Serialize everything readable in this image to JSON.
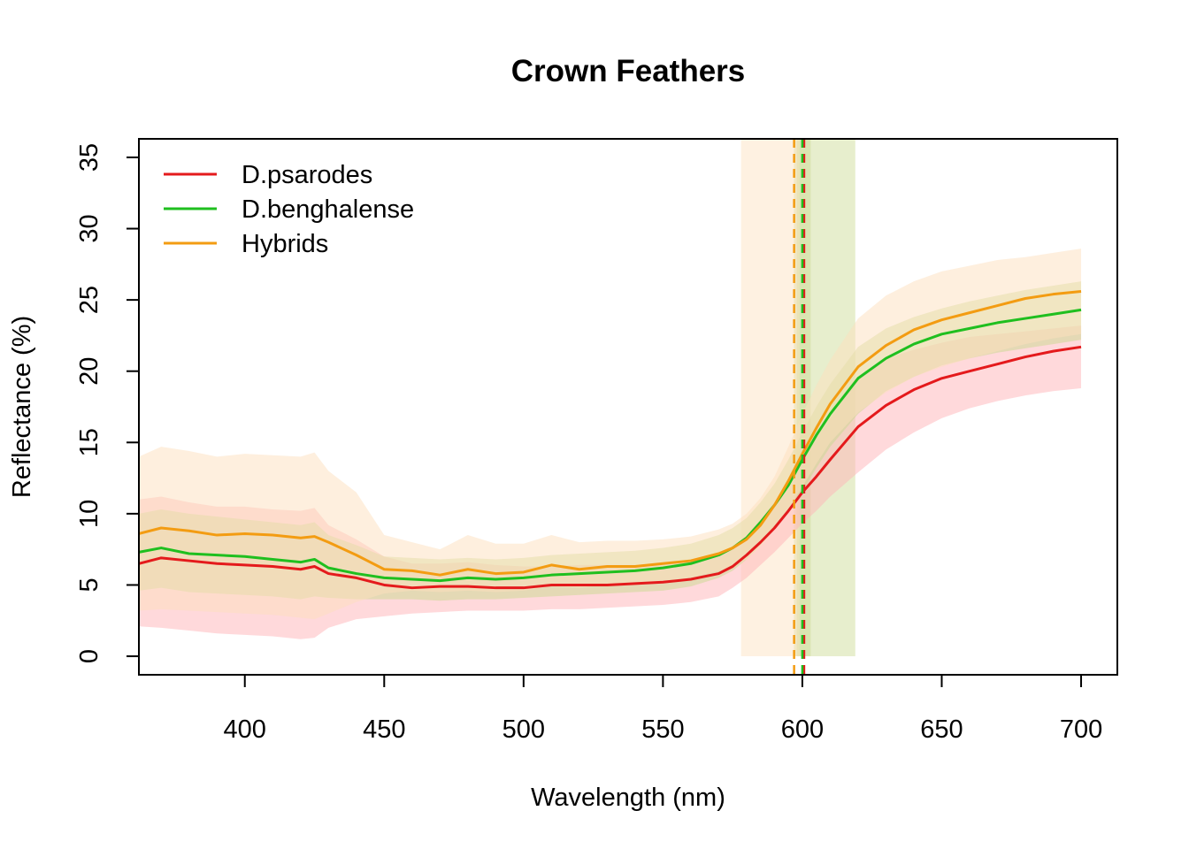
{
  "chart_data": {
    "type": "line",
    "title": "Crown Feathers",
    "xlabel": "Wavelength (nm)",
    "ylabel": "Reflectance (%)",
    "xlim": [
      362,
      713
    ],
    "ylim": [
      -1.3,
      36.3
    ],
    "x_ticks": [
      "400",
      "450",
      "500",
      "550",
      "600",
      "650",
      "700"
    ],
    "y_ticks": [
      "0",
      "5",
      "10",
      "15",
      "20",
      "25",
      "30",
      "35"
    ],
    "legend_position": "top-left",
    "grid": false,
    "series": [
      {
        "name": "D.psarodes",
        "color": "#e41a1c",
        "band_color": "#ffb3b8",
        "x": [
          362,
          370,
          380,
          390,
          400,
          410,
          420,
          425,
          430,
          440,
          450,
          460,
          470,
          480,
          490,
          500,
          510,
          520,
          530,
          540,
          550,
          560,
          570,
          575,
          580,
          585,
          590,
          595,
          600,
          605,
          610,
          620,
          630,
          640,
          650,
          660,
          670,
          680,
          690,
          700
        ],
        "values": [
          6.5,
          6.9,
          6.7,
          6.5,
          6.4,
          6.3,
          6.1,
          6.3,
          5.8,
          5.5,
          5.0,
          4.8,
          4.9,
          4.9,
          4.8,
          4.8,
          5.0,
          5.0,
          5.0,
          5.1,
          5.2,
          5.4,
          5.8,
          6.3,
          7.1,
          8.0,
          9.0,
          10.2,
          11.5,
          12.6,
          13.8,
          16.1,
          17.6,
          18.7,
          19.5,
          20.0,
          20.5,
          21.0,
          21.4,
          21.7
        ],
        "band_upper": [
          11.0,
          11.2,
          10.8,
          10.5,
          10.5,
          10.3,
          10.2,
          10.4,
          9.2,
          8.2,
          7.0,
          6.5,
          6.5,
          6.6,
          6.4,
          6.3,
          6.3,
          6.4,
          6.4,
          6.4,
          6.5,
          6.7,
          7.2,
          7.7,
          8.5,
          9.6,
          10.8,
          12.3,
          13.9,
          15.3,
          16.7,
          19.5,
          20.9,
          21.5,
          22.0,
          22.4,
          22.6,
          22.8,
          23.0,
          23.2
        ],
        "band_lower": [
          2.1,
          2.0,
          1.8,
          1.6,
          1.5,
          1.4,
          1.2,
          1.3,
          2.0,
          2.6,
          2.8,
          3.0,
          3.1,
          3.2,
          3.2,
          3.2,
          3.3,
          3.3,
          3.4,
          3.5,
          3.6,
          3.8,
          4.2,
          4.8,
          5.5,
          6.4,
          7.3,
          8.3,
          9.3,
          10.2,
          11.2,
          12.9,
          14.5,
          15.7,
          16.7,
          17.4,
          17.9,
          18.3,
          18.6,
          18.8
        ]
      },
      {
        "name": "D.benghalense",
        "color": "#1fbf1f",
        "band_color": "#c9d990",
        "x": [
          362,
          370,
          380,
          390,
          400,
          410,
          420,
          425,
          430,
          440,
          450,
          460,
          470,
          480,
          490,
          500,
          510,
          520,
          530,
          540,
          550,
          560,
          570,
          575,
          580,
          585,
          590,
          595,
          600,
          605,
          610,
          620,
          630,
          640,
          650,
          660,
          670,
          680,
          690,
          700
        ],
        "values": [
          7.3,
          7.6,
          7.2,
          7.1,
          7.0,
          6.8,
          6.6,
          6.8,
          6.2,
          5.8,
          5.5,
          5.4,
          5.3,
          5.5,
          5.4,
          5.5,
          5.7,
          5.8,
          5.9,
          6.0,
          6.2,
          6.5,
          7.1,
          7.6,
          8.3,
          9.4,
          10.6,
          12.0,
          13.8,
          15.5,
          17.0,
          19.5,
          20.9,
          21.9,
          22.6,
          23.0,
          23.4,
          23.7,
          24.0,
          24.3
        ],
        "band_upper": [
          10.0,
          10.3,
          10.0,
          9.8,
          9.6,
          9.4,
          9.2,
          9.4,
          8.5,
          7.8,
          7.0,
          6.9,
          6.8,
          6.9,
          6.8,
          6.9,
          7.1,
          7.2,
          7.3,
          7.4,
          7.6,
          7.9,
          8.5,
          9.0,
          9.7,
          10.8,
          12.1,
          13.8,
          15.7,
          17.5,
          19.1,
          21.7,
          23.0,
          23.8,
          24.4,
          24.9,
          25.3,
          25.7,
          26.0,
          26.3
        ],
        "band_lower": [
          4.6,
          4.8,
          4.5,
          4.4,
          4.3,
          4.2,
          4.0,
          4.2,
          4.1,
          4.0,
          4.0,
          4.0,
          3.9,
          4.0,
          4.0,
          4.1,
          4.2,
          4.3,
          4.4,
          4.5,
          4.6,
          4.9,
          5.5,
          6.0,
          6.8,
          7.8,
          8.9,
          10.1,
          11.6,
          13.2,
          14.7,
          17.0,
          18.6,
          19.6,
          20.4,
          20.9,
          21.3,
          21.6,
          21.9,
          22.2
        ]
      },
      {
        "name": "Hybrids",
        "color": "#f39c12",
        "band_color": "#fde0bd",
        "x": [
          362,
          370,
          380,
          390,
          400,
          410,
          420,
          425,
          430,
          440,
          450,
          460,
          470,
          480,
          490,
          500,
          510,
          520,
          530,
          540,
          550,
          560,
          570,
          575,
          580,
          585,
          590,
          595,
          600,
          605,
          610,
          620,
          630,
          640,
          650,
          660,
          670,
          680,
          690,
          700
        ],
        "values": [
          8.6,
          9.0,
          8.8,
          8.5,
          8.6,
          8.5,
          8.3,
          8.4,
          8.0,
          7.1,
          6.1,
          6.0,
          5.7,
          6.1,
          5.8,
          5.9,
          6.4,
          6.1,
          6.3,
          6.3,
          6.5,
          6.7,
          7.2,
          7.6,
          8.2,
          9.2,
          10.6,
          12.3,
          14.2,
          16.0,
          17.7,
          20.3,
          21.8,
          22.9,
          23.6,
          24.1,
          24.6,
          25.1,
          25.4,
          25.6
        ],
        "band_upper": [
          14.0,
          14.7,
          14.4,
          14.0,
          14.2,
          14.1,
          14.0,
          14.3,
          13.0,
          11.5,
          8.5,
          8.0,
          7.5,
          8.5,
          7.9,
          7.9,
          8.5,
          8.0,
          8.1,
          8.1,
          8.2,
          8.4,
          8.9,
          9.3,
          10.0,
          11.1,
          12.6,
          14.7,
          17.0,
          19.0,
          20.8,
          23.7,
          25.3,
          26.3,
          27.0,
          27.4,
          27.8,
          28.0,
          28.3,
          28.6
        ],
        "band_lower": [
          3.2,
          3.3,
          3.2,
          3.1,
          3.0,
          2.9,
          2.7,
          2.6,
          3.0,
          3.8,
          4.4,
          4.6,
          4.5,
          4.6,
          4.5,
          4.6,
          4.9,
          4.8,
          5.0,
          5.1,
          5.3,
          5.5,
          6.0,
          6.3,
          6.8,
          7.7,
          8.9,
          10.3,
          11.9,
          13.5,
          15.0,
          17.1,
          18.5,
          19.6,
          20.3,
          20.9,
          21.4,
          21.9,
          22.3,
          22.6
        ]
      }
    ],
    "vertical_markers": [
      {
        "series": "D.psarodes",
        "x": 600,
        "range": [
          597,
          603
        ],
        "color": "#e41a1c",
        "band_color": "#c9d990",
        "style": "dashed"
      },
      {
        "series": "D.benghalense",
        "x": 600,
        "range": [
          598,
          619
        ],
        "color": "#1fbf1f",
        "band_color": "#c9d990",
        "style": "dashed"
      },
      {
        "series": "Hybrids",
        "x": 598,
        "range": [
          578,
          599
        ],
        "color": "#f39c12",
        "band_color": "#fde0bd",
        "style": "dashed"
      }
    ]
  }
}
